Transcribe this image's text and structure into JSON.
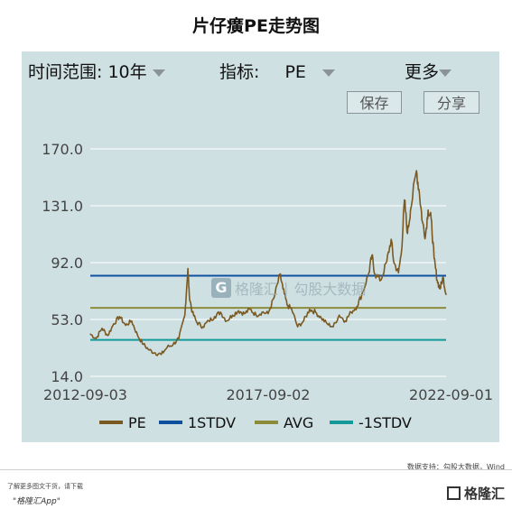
{
  "title": "片仔癀PE走势图",
  "controls": {
    "range_label": "时间范围:",
    "range_value": "10年",
    "indicator_label": "指标:",
    "indicator_value": "PE",
    "more_label": "更多",
    "save_label": "保存",
    "share_label": "分享"
  },
  "watermark": {
    "logo_text": "格隆汇",
    "sub_text": "勾股大数据"
  },
  "footer": {
    "source": "数据支持：勾股大数据，Wind",
    "note": "了解更多图文干货，请下载",
    "app": "\"格隆汇App\"",
    "logo_text": "格隆汇"
  },
  "colors": {
    "pe": "#7a5a22",
    "stdv_plus": "#0f4fa0",
    "avg": "#8b8b3a",
    "stdv_minus": "#139999",
    "panel": "#cfe0e3",
    "grid": "#ffffff"
  },
  "chart_data": {
    "type": "line",
    "title": "片仔癀PE走势图",
    "y_ticks": [
      "170.0",
      "131.0",
      "92.0",
      "53.0",
      "14.0"
    ],
    "ylim": [
      14.0,
      170.0
    ],
    "x_ticks": [
      "2012-09-03",
      "2017-09-02",
      "2022-09-01"
    ],
    "xlim": [
      "2012-09-03",
      "2022-09-01"
    ],
    "grid": true,
    "legend_position": "bottom",
    "reference_lines": {
      "plus_1stdv": 83.0,
      "avg": 61.0,
      "minus_1stdv": 39.0
    },
    "series": [
      {
        "name": "PE",
        "x": [
          "2012-09-03",
          "2012-11-01",
          "2013-01-01",
          "2013-03-01",
          "2013-05-01",
          "2013-07-01",
          "2013-09-01",
          "2013-11-01",
          "2014-01-01",
          "2014-03-01",
          "2014-05-01",
          "2014-07-01",
          "2014-09-01",
          "2014-11-01",
          "2015-01-01",
          "2015-03-01",
          "2015-05-01",
          "2015-06-01",
          "2015-06-15",
          "2015-07-15",
          "2015-09-01",
          "2015-11-01",
          "2016-01-01",
          "2016-03-01",
          "2016-05-01",
          "2016-07-01",
          "2016-09-01",
          "2016-11-01",
          "2017-01-01",
          "2017-03-01",
          "2017-05-01",
          "2017-07-01",
          "2017-09-01",
          "2017-11-01",
          "2018-01-01",
          "2018-02-01",
          "2018-03-15",
          "2018-05-01",
          "2018-07-01",
          "2018-09-01",
          "2018-11-01",
          "2019-01-01",
          "2019-03-01",
          "2019-05-01",
          "2019-07-01",
          "2019-09-01",
          "2019-11-01",
          "2020-01-01",
          "2020-03-01",
          "2020-05-01",
          "2020-07-01",
          "2020-08-01",
          "2020-09-01",
          "2020-11-01",
          "2021-01-01",
          "2021-02-15",
          "2021-03-15",
          "2021-05-01",
          "2021-06-01",
          "2021-07-01",
          "2021-08-01",
          "2021-09-01",
          "2021-11-01",
          "2021-12-01",
          "2022-01-01",
          "2022-02-01",
          "2022-03-01",
          "2022-04-01",
          "2022-05-01",
          "2022-06-01",
          "2022-07-01",
          "2022-08-01",
          "2022-09-01"
        ],
        "values": [
          43,
          40,
          47,
          42,
          50,
          55,
          49,
          52,
          42,
          36,
          32,
          30,
          29,
          34,
          36,
          40,
          56,
          88,
          70,
          58,
          51,
          48,
          52,
          55,
          58,
          52,
          56,
          59,
          57,
          60,
          56,
          58,
          57,
          68,
          84,
          74,
          63,
          60,
          48,
          52,
          60,
          58,
          54,
          50,
          48,
          56,
          52,
          58,
          62,
          72,
          85,
          97,
          84,
          80,
          93,
          108,
          92,
          85,
          100,
          135,
          112,
          128,
          155,
          140,
          120,
          110,
          128,
          122,
          95,
          80,
          74,
          82,
          70
        ]
      }
    ]
  }
}
